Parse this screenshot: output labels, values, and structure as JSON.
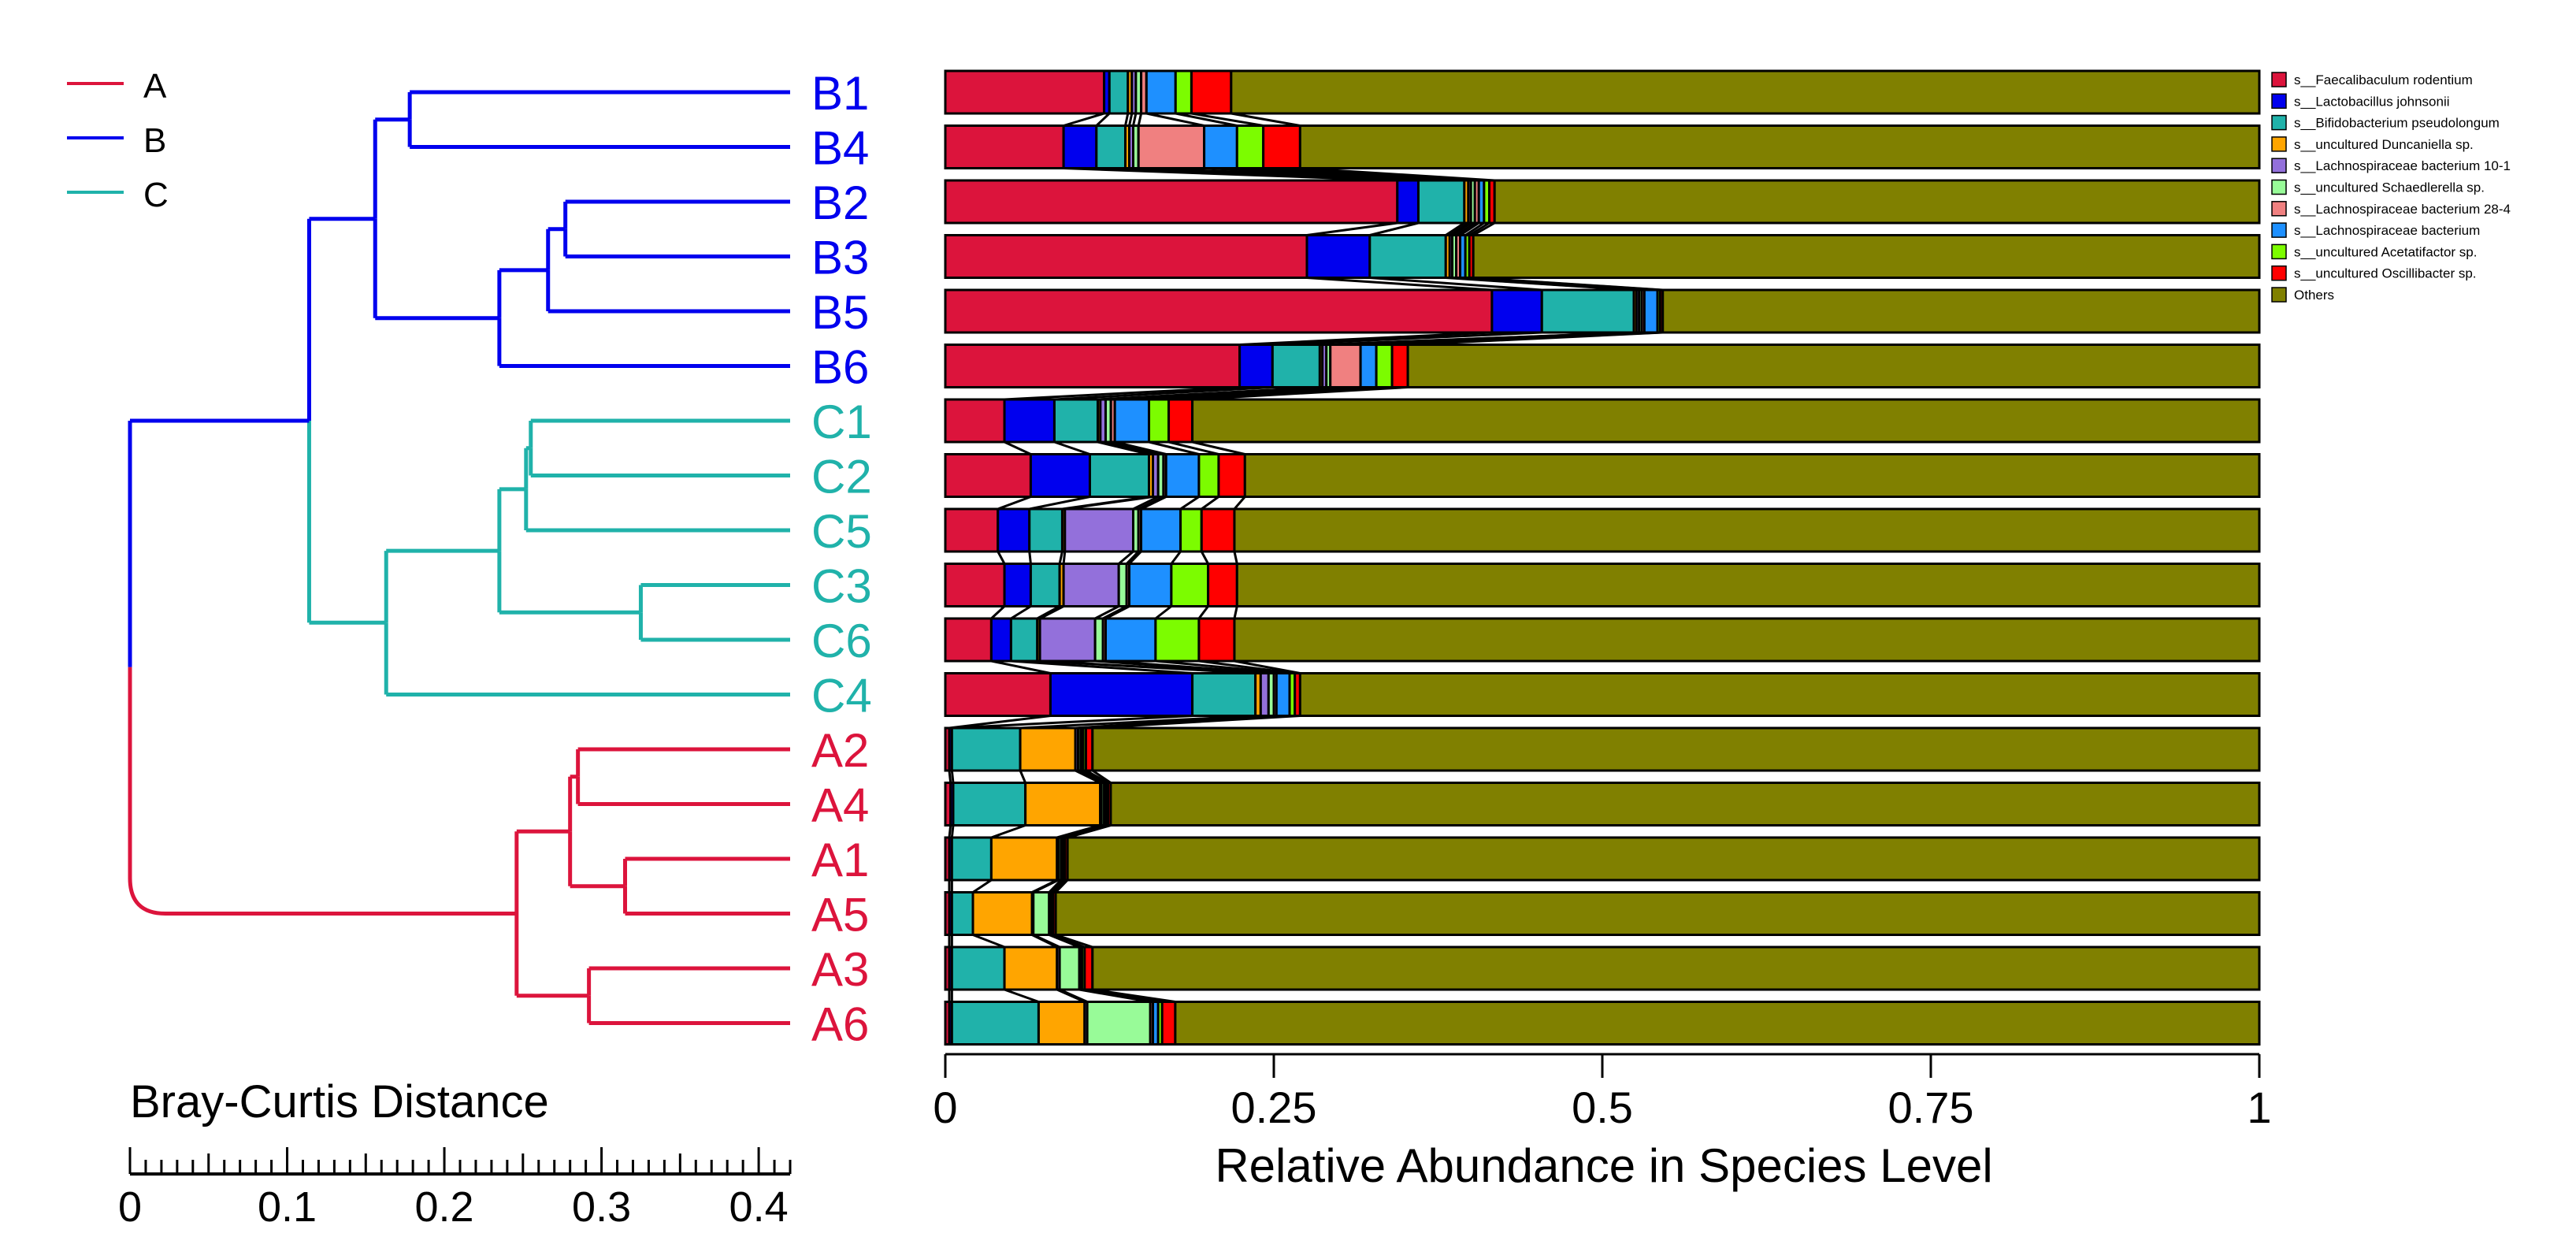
{
  "chart_data": {
    "type": "bar",
    "stacked": true,
    "orientation": "horizontal",
    "xlabel": "Relative Abundance in Species Level",
    "xlim": [
      0,
      1
    ],
    "xticks": [
      0,
      0.25,
      0.5,
      0.75,
      1
    ],
    "xtick_labels": [
      "0",
      "0.25",
      "0.5",
      "0.75",
      "1"
    ],
    "grid": false,
    "legend_position": "top-right",
    "categories": [
      "B1",
      "B4",
      "B2",
      "B3",
      "B5",
      "B6",
      "C1",
      "C2",
      "C5",
      "C3",
      "C6",
      "C4",
      "A2",
      "A4",
      "A1",
      "A5",
      "A3",
      "A6"
    ],
    "category_groups": [
      "B",
      "B",
      "B",
      "B",
      "B",
      "B",
      "C",
      "C",
      "C",
      "C",
      "C",
      "C",
      "A",
      "A",
      "A",
      "A",
      "A",
      "A"
    ],
    "series": [
      {
        "name": "s__Faecalibaculum rodentium",
        "color": "#DC143C",
        "values": [
          0.12,
          0.09,
          0.344,
          0.276,
          0.416,
          0.224,
          0.045,
          0.065,
          0.04,
          0.045,
          0.035,
          0.08,
          0.003,
          0.004,
          0.003,
          0.003,
          0.003,
          0.003
        ]
      },
      {
        "name": "s__Lactobacillus johnsonii",
        "color": "#0000EE",
        "values": [
          0.004,
          0.025,
          0.016,
          0.048,
          0.038,
          0.025,
          0.038,
          0.045,
          0.024,
          0.02,
          0.015,
          0.108,
          0.002,
          0.002,
          0.002,
          0.002,
          0.002,
          0.002
        ]
      },
      {
        "name": "s__Bifidobacterium pseudolongum",
        "color": "#20B2AA",
        "values": [
          0.014,
          0.022,
          0.035,
          0.058,
          0.07,
          0.036,
          0.033,
          0.045,
          0.025,
          0.022,
          0.02,
          0.048,
          0.052,
          0.055,
          0.03,
          0.016,
          0.04,
          0.066
        ]
      },
      {
        "name": "s__uncultured Duncaniella sp.",
        "color": "#FFA500",
        "values": [
          0.003,
          0.003,
          0.003,
          0.003,
          0.002,
          0.002,
          0.002,
          0.003,
          0.002,
          0.003,
          0.002,
          0.004,
          0.042,
          0.057,
          0.05,
          0.045,
          0.04,
          0.035
        ]
      },
      {
        "name": "s__Lachnospiraceae bacterium 10-1",
        "color": "#9370DB",
        "values": [
          0.003,
          0.003,
          0.002,
          0.002,
          0.002,
          0.003,
          0.004,
          0.004,
          0.052,
          0.042,
          0.042,
          0.006,
          0.002,
          0.001,
          0.001,
          0.001,
          0.002,
          0.002
        ]
      },
      {
        "name": "s__uncultured Schaedlerella sp.",
        "color": "#98FB98",
        "values": [
          0.004,
          0.004,
          0.003,
          0.003,
          0.002,
          0.003,
          0.004,
          0.004,
          0.004,
          0.006,
          0.006,
          0.004,
          0.002,
          0.002,
          0.002,
          0.012,
          0.015,
          0.048
        ]
      },
      {
        "name": "s__Lachnospiraceae bacterium 28-4",
        "color": "#F08080",
        "values": [
          0.004,
          0.05,
          0.003,
          0.003,
          0.002,
          0.023,
          0.003,
          0.002,
          0.002,
          0.002,
          0.002,
          0.002,
          0.001,
          0.001,
          0.001,
          0.001,
          0.001,
          0.002
        ]
      },
      {
        "name": "s__Lachnospiraceae bacterium",
        "color": "#1E90FF",
        "values": [
          0.022,
          0.025,
          0.004,
          0.004,
          0.01,
          0.012,
          0.026,
          0.025,
          0.03,
          0.032,
          0.038,
          0.01,
          0.001,
          0.001,
          0.001,
          0.001,
          0.001,
          0.004
        ]
      },
      {
        "name": "s__uncultured Acetatifactor sp.",
        "color": "#7CFC00",
        "values": [
          0.012,
          0.02,
          0.004,
          0.003,
          0.002,
          0.012,
          0.015,
          0.015,
          0.016,
          0.028,
          0.033,
          0.004,
          0.002,
          0.001,
          0.001,
          0.001,
          0.002,
          0.003
        ]
      },
      {
        "name": "s__uncultured Oscillibacter sp.",
        "color": "#FF0000",
        "values": [
          0.03,
          0.028,
          0.004,
          0.003,
          0.002,
          0.012,
          0.018,
          0.02,
          0.025,
          0.022,
          0.027,
          0.004,
          0.005,
          0.002,
          0.002,
          0.002,
          0.006,
          0.01
        ]
      },
      {
        "name": "Others",
        "color": "#808000",
        "values": [
          0.777,
          0.73,
          0.582,
          0.6,
          0.454,
          0.648,
          0.812,
          0.772,
          0.78,
          0.778,
          0.78,
          0.73,
          0.888,
          0.875,
          0.907,
          0.916,
          0.888,
          0.825
        ]
      }
    ],
    "dendrogram": {
      "axis_label": "Bray-Curtis Distance",
      "xlim": [
        0,
        0.42
      ],
      "ticks": [
        "0",
        "0.1",
        "0.2",
        "0.3",
        "0.4"
      ],
      "tick_values": [
        0,
        0.1,
        0.2,
        0.3,
        0.4
      ],
      "leaves": [
        "B1",
        "B4",
        "B2",
        "B3",
        "B5",
        "B6",
        "C1",
        "C2",
        "C5",
        "C3",
        "C6",
        "C4",
        "A2",
        "A4",
        "A1",
        "A5",
        "A3",
        "A6"
      ],
      "merges": [
        {
          "a": "B1",
          "b": "B4",
          "height": 0.242,
          "id": "n1"
        },
        {
          "a": "B2",
          "b": "B3",
          "height": 0.143,
          "id": "n2"
        },
        {
          "a": "n2",
          "b": "B5",
          "height": 0.154,
          "id": "n3"
        },
        {
          "a": "n3",
          "b": "B6",
          "height": 0.185,
          "id": "n4"
        },
        {
          "a": "n1",
          "b": "n4",
          "height": 0.264,
          "id": "n5"
        },
        {
          "a": "C1",
          "b": "C2",
          "height": 0.165,
          "id": "n6"
        },
        {
          "a": "n6",
          "b": "C5",
          "height": 0.168,
          "id": "n7"
        },
        {
          "a": "C3",
          "b": "C6",
          "height": 0.095,
          "id": "n8"
        },
        {
          "a": "n7",
          "b": "n8",
          "height": 0.185,
          "id": "n9"
        },
        {
          "a": "n9",
          "b": "C4",
          "height": 0.257,
          "id": "n10"
        },
        {
          "a": "n5",
          "b": "n10",
          "height": 0.306,
          "id": "n11"
        },
        {
          "a": "A2",
          "b": "A4",
          "height": 0.135,
          "id": "n12"
        },
        {
          "a": "A1",
          "b": "A5",
          "height": 0.105,
          "id": "n13"
        },
        {
          "a": "n12",
          "b": "n13",
          "height": 0.14,
          "id": "n14"
        },
        {
          "a": "A3",
          "b": "A6",
          "height": 0.128,
          "id": "n15"
        },
        {
          "a": "n14",
          "b": "n15",
          "height": 0.174,
          "id": "n16"
        },
        {
          "a": "n11",
          "b": "n16",
          "height": 0.42,
          "id": "n17"
        }
      ]
    },
    "group_legend": [
      {
        "label": "A",
        "color": "#DC143C"
      },
      {
        "label": "B",
        "color": "#0000EE"
      },
      {
        "label": "C",
        "color": "#20B2AA"
      }
    ]
  }
}
